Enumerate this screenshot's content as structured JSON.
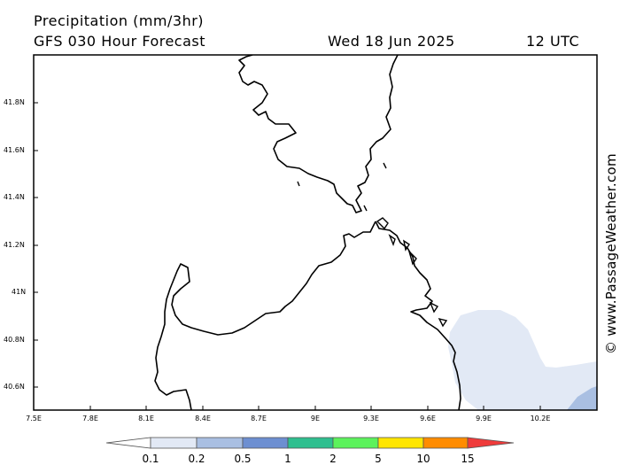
{
  "header": {
    "title": "Precipitation (mm/3hr)",
    "subtitle": "GFS 030 Hour Forecast",
    "date": "Wed 18 Jun 2025",
    "time": "12 UTC"
  },
  "credit": "© www.PassageWeather.com",
  "lat_labels": [
    "41.8N",
    "41.6N",
    "41.4N",
    "41.2N",
    "41N",
    "40.8N",
    "40.6N"
  ],
  "lon_labels": [
    "7.5E",
    "7.8E",
    "8.1E",
    "8.4E",
    "8.7E",
    "9E",
    "9.3E",
    "9.6E",
    "9.9E",
    "10.2E"
  ],
  "colorbar": {
    "labels": [
      "0.1",
      "0.2",
      "0.5",
      "1",
      "2",
      "5",
      "10",
      "15"
    ],
    "colors": [
      "#ffffff",
      "#e2e9f5",
      "#a9bfe2",
      "#6d8fd1",
      "#2fbf8f",
      "#5cf25c",
      "#ffe600",
      "#ff8c00",
      "#ef3b3b"
    ]
  },
  "colors": {
    "coast": "#000000",
    "light_precip": "#e2e9f5",
    "medium_precip": "#a9bfe2"
  }
}
